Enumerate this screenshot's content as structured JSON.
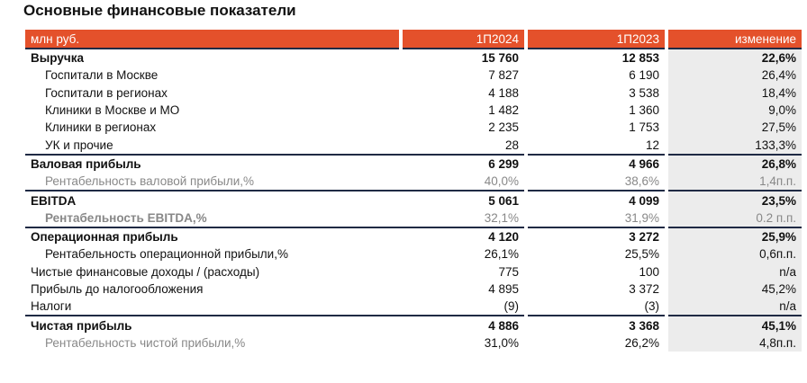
{
  "title": "Основные финансовые показатели",
  "table": {
    "header": [
      "млн руб.",
      "1П2024",
      "1П2023",
      "изменение"
    ],
    "rows": [
      [
        "Выручка",
        "15 760",
        "12 853",
        "22,6%"
      ],
      [
        "Госпитали в Москве",
        "7 827",
        "6 190",
        "26,4%"
      ],
      [
        "Госпитали в регионах",
        "4 188",
        "3 538",
        "18,4%"
      ],
      [
        "Клиники в Москве и МО",
        "1 482",
        "1 360",
        "9,0%"
      ],
      [
        "Клиники в регионах",
        "2 235",
        "1 753",
        "27,5%"
      ],
      [
        "УК и прочие",
        "28",
        "12",
        "133,3%"
      ],
      [
        "Валовая прибыль",
        "6 299",
        "4 966",
        "26,8%"
      ],
      [
        "Рентабельность валовой прибыли,%",
        "40,0%",
        "38,6%",
        "1,4п.п."
      ],
      [
        "EBITDA",
        "5 061",
        "4 099",
        "23,5%"
      ],
      [
        "Рентабельность EBITDA,%",
        "32,1%",
        "31,9%",
        "0.2 п.п."
      ],
      [
        "Операционная прибыль",
        "4 120",
        "3 272",
        "25,9%"
      ],
      [
        "Рентабельность операционной прибыли,%",
        "26,1%",
        "25,5%",
        "0,6п.п."
      ],
      [
        "Чистые финансовые доходы / (расходы)",
        "775",
        "100",
        "n/a"
      ],
      [
        "Прибыль до налогообложения",
        "4 895",
        "3 372",
        "45,2%"
      ],
      [
        "Налоги",
        "(9)",
        "(3)",
        "n/a"
      ],
      [
        "Чистая прибыль",
        "4 886",
        "3 368",
        "45,1%"
      ],
      [
        "Рентабельность чистой прибыли,%",
        "31,0%",
        "26,2%",
        "4,8п.п."
      ]
    ]
  }
}
